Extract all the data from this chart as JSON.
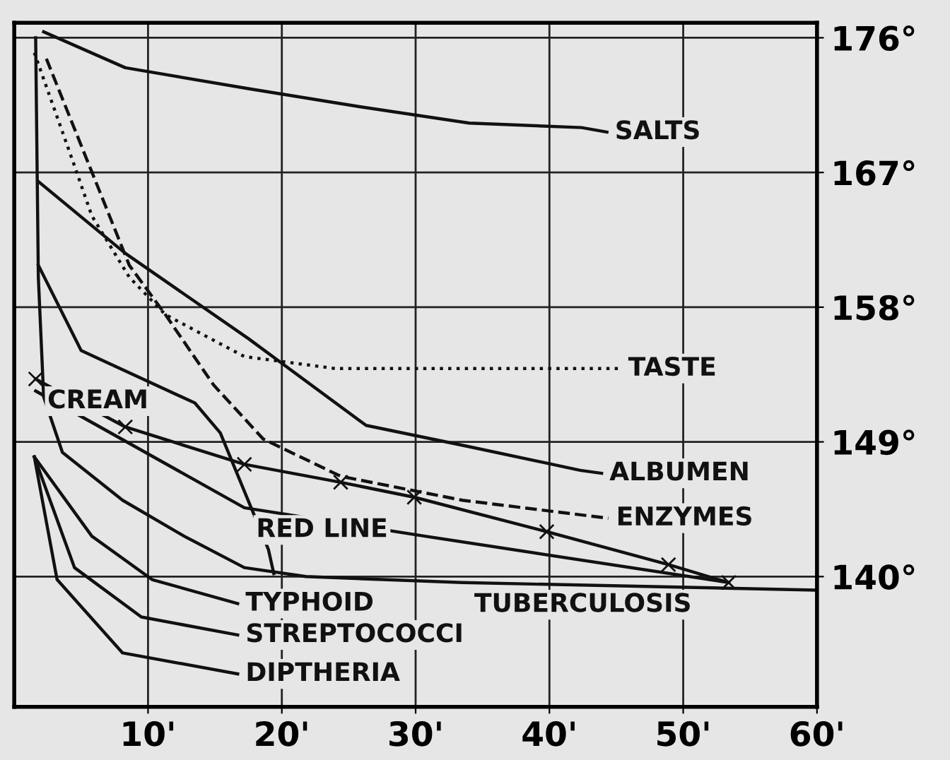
{
  "chart_data": {
    "type": "line",
    "xlim": [
      0,
      60
    ],
    "ylim": [
      131.3,
      177
    ],
    "xticks": [
      {
        "value": 10,
        "label": "10'"
      },
      {
        "value": 20,
        "label": "20'"
      },
      {
        "value": 30,
        "label": "30'"
      },
      {
        "value": 40,
        "label": "40'"
      },
      {
        "value": 50,
        "label": "50'"
      },
      {
        "value": 60,
        "label": "60'"
      }
    ],
    "yticks": [
      {
        "value": 140,
        "label": "140°"
      },
      {
        "value": 149,
        "label": "149°"
      },
      {
        "value": 158,
        "label": "158°"
      },
      {
        "value": 167,
        "label": "167°"
      },
      {
        "value": 176,
        "label": "176°"
      }
    ],
    "grid": true,
    "series": [
      {
        "color": "#111111",
        "line_style": "solid",
        "x": [
          2.2,
          8.3,
          17.5,
          25.8,
          34,
          42.4,
          44.3
        ],
        "values": [
          176.4,
          174.0,
          172.6,
          171.4,
          170.3,
          170.0,
          169.7
        ]
      },
      {
        "color": "#111111",
        "line_style": "dotted",
        "x": [
          1.5,
          4.4,
          5.8,
          8.6,
          11.3,
          17.2,
          24,
          45.3
        ],
        "values": [
          175,
          167.7,
          164.1,
          160.0,
          157.5,
          154.7,
          153.9,
          153.9
        ]
      },
      {
        "color": "#111111",
        "line_style": "solid",
        "x": [
          1.8,
          8.3,
          17.5,
          26.3,
          33.9,
          42.3,
          43.9
        ],
        "values": [
          166.4,
          161.6,
          155.9,
          150.1,
          148.7,
          147.1,
          146.9
        ]
      },
      {
        "color": "#111111",
        "line_style": "dashed",
        "x": [
          2.4,
          8.6,
          11.3,
          14.9,
          18.6,
          24.4,
          33.5,
          44.4
        ],
        "values": [
          174.6,
          160.8,
          157.5,
          152.8,
          149.2,
          146.7,
          145.1,
          143.9
        ]
      },
      {
        "color": "#111111",
        "line_style": "solid",
        "marker": "cross",
        "x": [
          1.6,
          8.3,
          17.2,
          24.4,
          29.9,
          39.8,
          48.9,
          53.4
        ],
        "values": [
          153.2,
          150.0,
          147.5,
          146.3,
          145.3,
          143.0,
          140.8,
          139.6
        ]
      },
      {
        "color": "#111111",
        "line_style": "solid",
        "x": [
          1.6,
          17.2,
          30.7,
          53.4
        ],
        "values": [
          152.4,
          144.6,
          142.7,
          139.6
        ]
      },
      {
        "color": "#111111",
        "line_style": "solid",
        "x": [
          1.8,
          5,
          13.5,
          15.4,
          19,
          19.4
        ],
        "values": [
          160.8,
          155.1,
          151.6,
          149.6,
          141.8,
          140.2
        ]
      },
      {
        "color": "#111111",
        "line_style": "solid",
        "x": [
          1.6,
          1.8,
          2.2,
          3.6,
          8.1,
          12.7,
          17.2,
          21.8,
          33.5,
          59.8
        ],
        "values": [
          176,
          160,
          152,
          148.3,
          145.1,
          142.7,
          140.6,
          140.0,
          139.6,
          139.1
        ]
      },
      {
        "color": "#111111",
        "line_style": "solid",
        "x": [
          1.5,
          5.8,
          10.3,
          16.7
        ],
        "values": [
          148,
          142.7,
          139.8,
          138.2
        ]
      },
      {
        "color": "#111111",
        "line_style": "solid",
        "x": [
          1.5,
          4.5,
          9.5,
          16.7
        ],
        "values": [
          148,
          140.6,
          137.3,
          136.1
        ]
      },
      {
        "color": "#111111",
        "line_style": "solid",
        "x": [
          1.5,
          3.2,
          8.1,
          16.7
        ],
        "values": [
          148,
          139.8,
          134.9,
          133.5
        ]
      }
    ],
    "annotations": [
      {
        "text": "SALTS",
        "x": 44.3,
        "y": 169.7
      },
      {
        "text": "TASTE",
        "x": 45.3,
        "y": 153.9
      },
      {
        "text": "ALBUMEN",
        "x": 43.9,
        "y": 146.9
      },
      {
        "text": "ENZYMES",
        "x": 44.4,
        "y": 143.9
      },
      {
        "text": "CREAM",
        "x": 1.6,
        "y": 153.2
      },
      {
        "text": "RED LINE",
        "x": 17.2,
        "y": 144.6
      },
      {
        "text": "TUBERCULOSIS",
        "x": 33.5,
        "y": 139.6
      },
      {
        "text": "TYPHOID",
        "x": 16.7,
        "y": 138.2
      },
      {
        "text": "STREPTOCOCCI",
        "x": 16.7,
        "y": 136.1
      },
      {
        "text": "DIPTHERIA",
        "x": 16.7,
        "y": 133.5
      }
    ]
  }
}
